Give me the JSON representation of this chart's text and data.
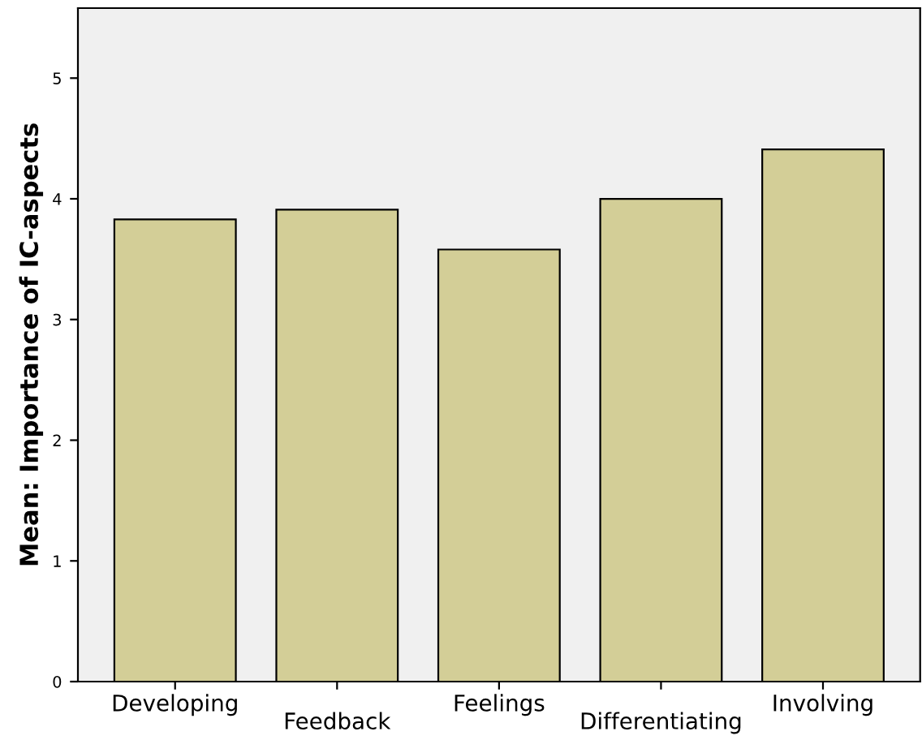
{
  "chart_data": {
    "type": "bar",
    "ylabel": "Mean: Importance of IC-aspects",
    "categories": [
      "Developing",
      "Feedback",
      "Feelings",
      "Differentiating",
      "Involving"
    ],
    "values": [
      3.83,
      3.91,
      3.58,
      4.0,
      4.41
    ],
    "color": "#d3ce97",
    "ylim": [
      0,
      5.58
    ],
    "yticks": [
      0,
      1,
      2,
      3,
      4,
      5
    ],
    "grid": false,
    "legend": false
  }
}
